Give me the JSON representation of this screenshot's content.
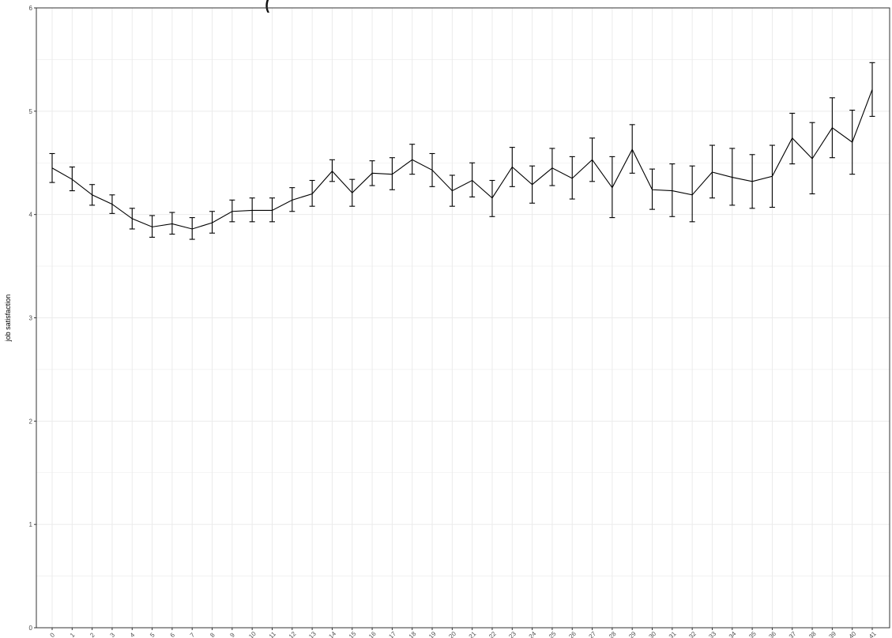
{
  "chart_data": {
    "type": "line",
    "title": "",
    "title_visible_fragment": "(",
    "xlabel": "",
    "ylabel": "job satisfaction",
    "xlim": [
      0,
      41
    ],
    "ylim": [
      0,
      6
    ],
    "y_ticks": [
      0,
      1,
      2,
      3,
      4,
      5,
      6
    ],
    "x": [
      0,
      1,
      2,
      3,
      4,
      5,
      6,
      7,
      8,
      9,
      10,
      11,
      12,
      13,
      14,
      15,
      16,
      17,
      18,
      19,
      20,
      21,
      22,
      23,
      24,
      25,
      26,
      27,
      28,
      29,
      30,
      31,
      32,
      33,
      34,
      35,
      36,
      37,
      38,
      39,
      40,
      41
    ],
    "series": [
      {
        "name": "",
        "values": [
          4.45,
          4.34,
          4.19,
          4.1,
          3.96,
          3.88,
          3.91,
          3.86,
          3.92,
          4.03,
          4.04,
          4.04,
          4.14,
          4.2,
          4.42,
          4.21,
          4.4,
          4.39,
          4.53,
          4.43,
          4.23,
          4.33,
          4.16,
          4.46,
          4.29,
          4.45,
          4.35,
          4.53,
          4.26,
          4.63,
          4.24,
          4.23,
          4.19,
          4.41,
          4.36,
          4.32,
          4.37,
          4.74,
          4.54,
          4.84,
          4.7,
          5.21
        ],
        "lower": [
          4.31,
          4.23,
          4.09,
          4.01,
          3.86,
          3.78,
          3.81,
          3.76,
          3.82,
          3.93,
          3.93,
          3.93,
          4.03,
          4.08,
          4.32,
          4.08,
          4.28,
          4.24,
          4.39,
          4.27,
          4.08,
          4.17,
          3.98,
          4.27,
          4.11,
          4.28,
          4.15,
          4.32,
          3.97,
          4.4,
          4.05,
          3.98,
          3.93,
          4.16,
          4.09,
          4.06,
          4.07,
          4.49,
          4.2,
          4.55,
          4.39,
          4.95
        ],
        "upper": [
          4.59,
          4.46,
          4.29,
          4.19,
          4.06,
          3.99,
          4.02,
          3.97,
          4.03,
          4.14,
          4.16,
          4.16,
          4.26,
          4.33,
          4.53,
          4.34,
          4.52,
          4.55,
          4.68,
          4.59,
          4.38,
          4.5,
          4.33,
          4.65,
          4.47,
          4.64,
          4.56,
          4.74,
          4.56,
          4.87,
          4.44,
          4.49,
          4.47,
          4.67,
          4.64,
          4.58,
          4.67,
          4.98,
          4.89,
          5.13,
          5.01,
          5.47
        ]
      }
    ],
    "grid": true,
    "legend": "none",
    "colors": {
      "line": "#000000",
      "grid": "#ebebeb",
      "panel_border": "#333333",
      "tick_text": "#4d4d4d"
    }
  }
}
